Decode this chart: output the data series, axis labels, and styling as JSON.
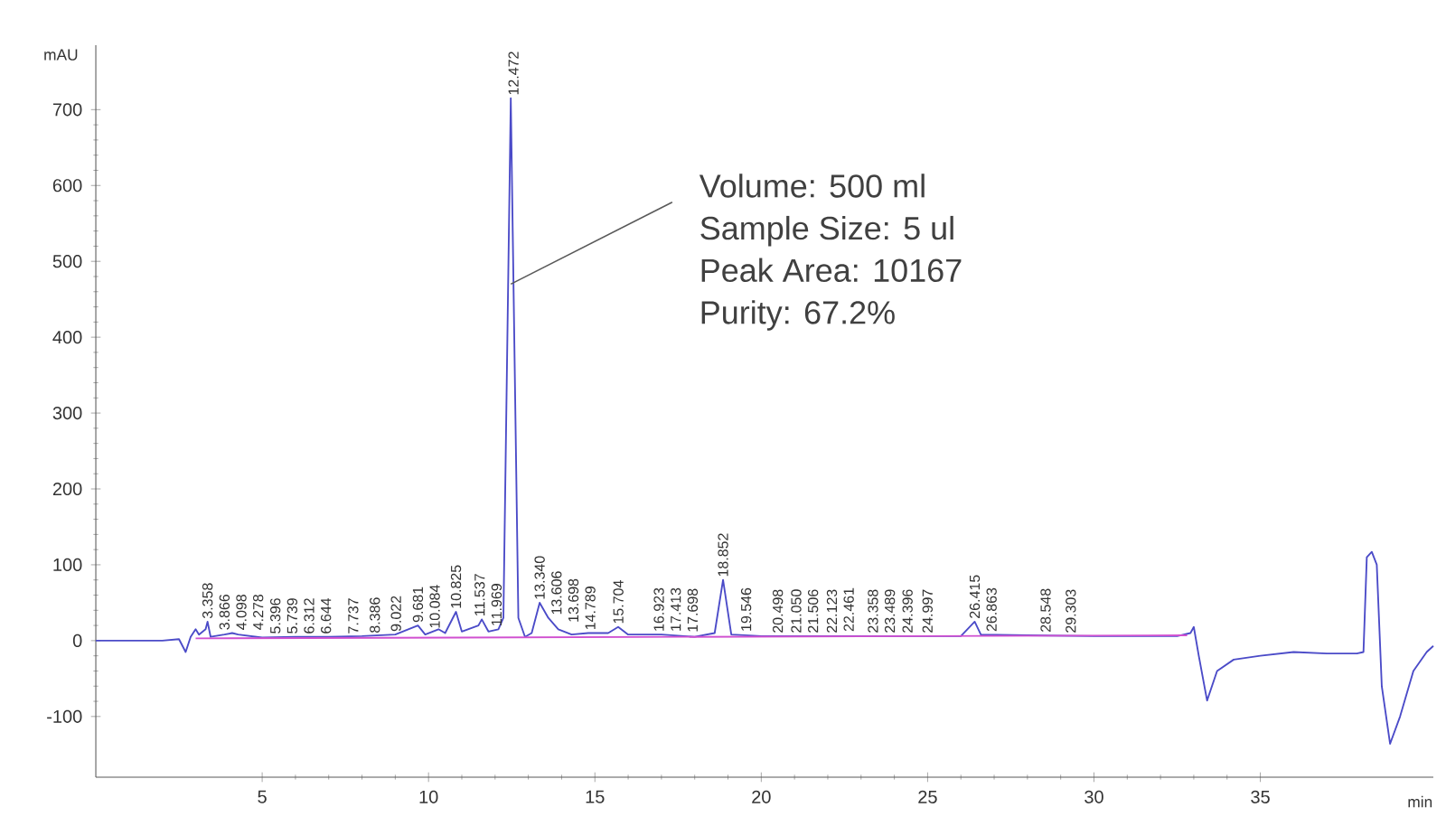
{
  "chart_data": {
    "type": "line",
    "xlabel": "min",
    "ylabel": "mAU",
    "xlim": [
      0,
      40.2
    ],
    "ylim": [
      -180,
      785
    ],
    "xticks": [
      5,
      10,
      15,
      20,
      25,
      30,
      35
    ],
    "yticks": [
      -100,
      0,
      100,
      200,
      300,
      400,
      500,
      600,
      700
    ],
    "marker": "none",
    "line_style": "solid",
    "series": [
      {
        "color": "#4b4bc8",
        "x": [
          0,
          2,
          2.5,
          2.7,
          2.85,
          3.0,
          3.1,
          3.3,
          3.358,
          3.45,
          3.866,
          4.1,
          4.278,
          5,
          6,
          7,
          8,
          9,
          9.681,
          9.9,
          10.3,
          10.5,
          10.825,
          11.0,
          11.5,
          11.6,
          11.8,
          12.1,
          12.25,
          12.472,
          12.7,
          12.9,
          13.1,
          13.34,
          13.6,
          13.9,
          14.3,
          14.8,
          15.4,
          15.7,
          16.0,
          17,
          18,
          18.6,
          18.852,
          19.1,
          20,
          22,
          24,
          26,
          26.415,
          26.6,
          28,
          30,
          32.5,
          32.9,
          33.0,
          33.15,
          33.4,
          33.7,
          34.2,
          35,
          36,
          37,
          37.9,
          38.1,
          38.2,
          38.35,
          38.5,
          38.65,
          38.9,
          39.2,
          39.6,
          40.0,
          40.2
        ],
        "values": [
          0,
          0,
          2,
          -15,
          5,
          15,
          8,
          15,
          25,
          5,
          8,
          10,
          8,
          4,
          5,
          5,
          6,
          8,
          20,
          8,
          15,
          10,
          38,
          12,
          20,
          28,
          12,
          15,
          30,
          715,
          30,
          5,
          10,
          50,
          30,
          15,
          8,
          10,
          10,
          18,
          8,
          8,
          5,
          10,
          80,
          8,
          6,
          6,
          6,
          6,
          25,
          8,
          7,
          6,
          6,
          10,
          18,
          -20,
          -79,
          -40,
          -25,
          -20,
          -15,
          -17,
          -17,
          -15,
          110,
          117,
          100,
          -60,
          -136,
          -100,
          -40,
          -15,
          -7
        ]
      },
      {
        "color": "#d050d0",
        "x": [
          3.0,
          32.8
        ],
        "values": [
          3,
          7
        ]
      }
    ],
    "annotations": [
      {
        "text": "Volume:  500 ml",
        "x": 12.472,
        "y": 470
      },
      "Sample Size: 5 ul",
      "Peak Area: 10167",
      "Purity: 67.2%",
      {
        "text": "3.358",
        "x": 3.358,
        "y": 25
      },
      {
        "text": "3.866",
        "x": 3.866,
        "y": 10
      },
      {
        "text": "4.098",
        "x": 4.098,
        "y": 10
      },
      {
        "text": "4.278",
        "x": 4.278,
        "y": 10
      },
      {
        "text": "5.396",
        "x": 5.396,
        "y": 5
      },
      {
        "text": "5.739",
        "x": 5.739,
        "y": 5
      },
      {
        "text": "6.312",
        "x": 6.312,
        "y": 5
      },
      {
        "text": "6.644",
        "x": 6.644,
        "y": 5
      },
      {
        "text": "7.737",
        "x": 7.737,
        "y": 5
      },
      {
        "text": "8.386",
        "x": 8.386,
        "y": 6
      },
      {
        "text": "9.022",
        "x": 9.022,
        "y": 8
      },
      {
        "text": "9.681",
        "x": 9.681,
        "y": 20
      },
      {
        "text": "10.084",
        "x": 10.084,
        "y": 12
      },
      {
        "text": "10.825",
        "x": 10.825,
        "y": 38
      },
      {
        "text": "11.537",
        "x": 11.537,
        "y": 28
      },
      {
        "text": "11.969",
        "x": 11.969,
        "y": 15
      },
      {
        "text": "12.472",
        "x": 12.472,
        "y": 715
      },
      {
        "text": "13.340",
        "x": 13.34,
        "y": 50
      },
      {
        "text": "13.606",
        "x": 13.606,
        "y": 30
      },
      {
        "text": "13.698",
        "x": 13.698,
        "y": 20
      },
      {
        "text": "14.789",
        "x": 14.789,
        "y": 10
      },
      {
        "text": "15.704",
        "x": 15.704,
        "y": 18
      },
      {
        "text": "16.923",
        "x": 16.923,
        "y": 8
      },
      {
        "text": "17.413",
        "x": 17.413,
        "y": 8
      },
      {
        "text": "17.698",
        "x": 17.698,
        "y": 7
      },
      {
        "text": "18.852",
        "x": 18.852,
        "y": 80
      },
      {
        "text": "19.546",
        "x": 19.546,
        "y": 8
      },
      {
        "text": "20.498",
        "x": 20.498,
        "y": 6
      },
      {
        "text": "21.050",
        "x": 21.05,
        "y": 6
      },
      {
        "text": "21.506",
        "x": 21.506,
        "y": 6
      },
      {
        "text": "22.123",
        "x": 22.123,
        "y": 6
      },
      {
        "text": "22.461",
        "x": 22.461,
        "y": 8
      },
      {
        "text": "23.358",
        "x": 23.358,
        "y": 6
      },
      {
        "text": "23.489",
        "x": 23.489,
        "y": 6
      },
      {
        "text": "24.396",
        "x": 24.396,
        "y": 6
      },
      {
        "text": "24.997",
        "x": 24.997,
        "y": 6
      },
      {
        "text": "26.415",
        "x": 26.415,
        "y": 25
      },
      {
        "text": "26.863",
        "x": 26.863,
        "y": 8
      },
      {
        "text": "28.548",
        "x": 28.548,
        "y": 7
      },
      {
        "text": "29.303",
        "x": 29.303,
        "y": 6
      }
    ]
  }
}
